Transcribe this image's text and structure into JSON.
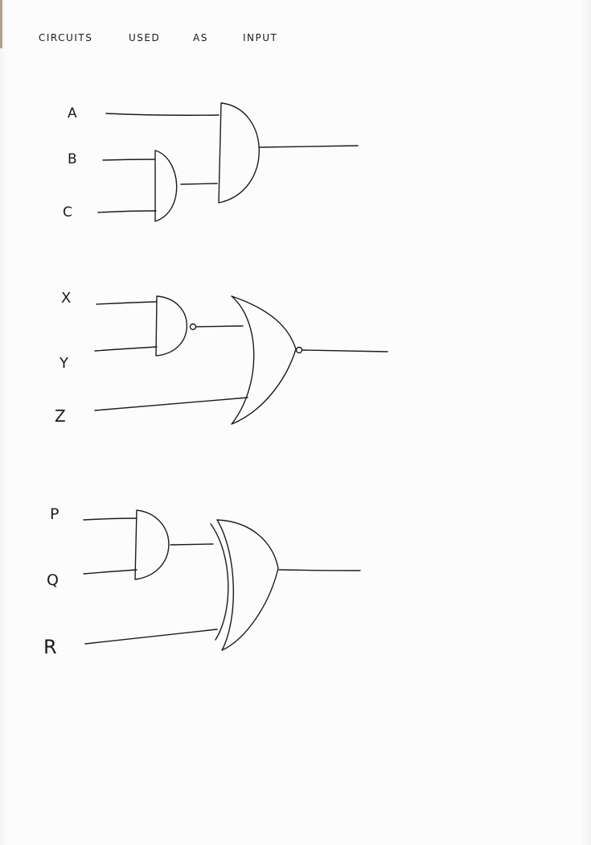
{
  "heading": {
    "word1": "CIRCUITS",
    "word2": "USED",
    "word3": "AS",
    "word4": "INPUT"
  },
  "circuit1": {
    "inputs": [
      "A",
      "B",
      "C"
    ],
    "gates": [
      "and-gate",
      "and-gate"
    ]
  },
  "circuit2": {
    "inputs": [
      "X",
      "Y",
      "Z"
    ],
    "gates": [
      "nand-gate",
      "nor-gate"
    ]
  },
  "circuit3": {
    "inputs": [
      "P",
      "Q",
      "R"
    ],
    "gates": [
      "and-gate",
      "xor-gate"
    ]
  },
  "colors": {
    "ink": "#1c1c1c",
    "paper": "#fbfbfb"
  }
}
